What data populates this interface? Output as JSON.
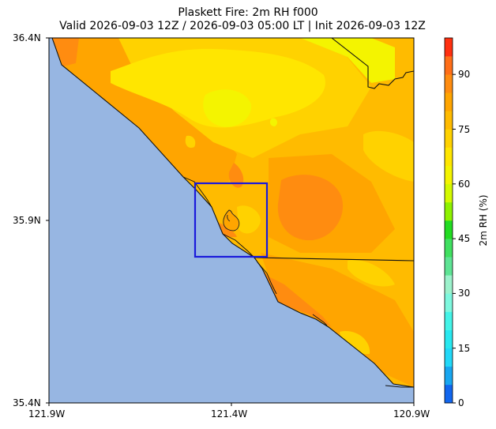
{
  "title": {
    "line1": "Plaskett Fire: 2m RH f000",
    "line2": "Valid 2026-09-03 12Z / 2026-09-03 05:00 LT | Init 2026-09-03 12Z"
  },
  "map": {
    "extent": {
      "lon": [
        -121.9,
        -120.9
      ],
      "lat": [
        35.4,
        36.4
      ]
    },
    "x_ticks": [
      "121.9W",
      "121.4W",
      "120.9W"
    ],
    "y_ticks": [
      "36.4N",
      "35.9N",
      "35.4N"
    ],
    "ocean_color": "#97b6e2",
    "domain_box": {
      "lon": [
        -121.5,
        -121.3
      ],
      "lat": [
        35.73,
        35.92
      ],
      "color": "#1a1adb"
    },
    "fire_icon": "flame-icon"
  },
  "colorbar": {
    "label": "2m RH (%)",
    "ticks": [
      "0",
      "15",
      "30",
      "45",
      "60",
      "75",
      "90"
    ],
    "range": [
      0,
      100
    ],
    "levels": [
      {
        "from": 0,
        "to": 5,
        "color": "#1166ee"
      },
      {
        "from": 5,
        "to": 10,
        "color": "#18a6f0"
      },
      {
        "from": 10,
        "to": 15,
        "color": "#22d8f8"
      },
      {
        "from": 15,
        "to": 20,
        "color": "#28e8f0"
      },
      {
        "from": 20,
        "to": 25,
        "color": "#44f4e8"
      },
      {
        "from": 25,
        "to": 30,
        "color": "#7ef8de"
      },
      {
        "from": 30,
        "to": 35,
        "color": "#9cf2cc"
      },
      {
        "from": 35,
        "to": 40,
        "color": "#5ee494"
      },
      {
        "from": 40,
        "to": 45,
        "color": "#40e060"
      },
      {
        "from": 45,
        "to": 50,
        "color": "#22dc22"
      },
      {
        "from": 50,
        "to": 55,
        "color": "#8ef200"
      },
      {
        "from": 55,
        "to": 60,
        "color": "#d4fa00"
      },
      {
        "from": 60,
        "to": 65,
        "color": "#f4f400"
      },
      {
        "from": 65,
        "to": 70,
        "color": "#ffe600"
      },
      {
        "from": 70,
        "to": 75,
        "color": "#ffd200"
      },
      {
        "from": 75,
        "to": 80,
        "color": "#ffbb00"
      },
      {
        "from": 80,
        "to": 85,
        "color": "#ffa500"
      },
      {
        "from": 85,
        "to": 90,
        "color": "#ff8c10"
      },
      {
        "from": 90,
        "to": 95,
        "color": "#ff6e18"
      },
      {
        "from": 95,
        "to": 100,
        "color": "#ff3010"
      }
    ]
  }
}
